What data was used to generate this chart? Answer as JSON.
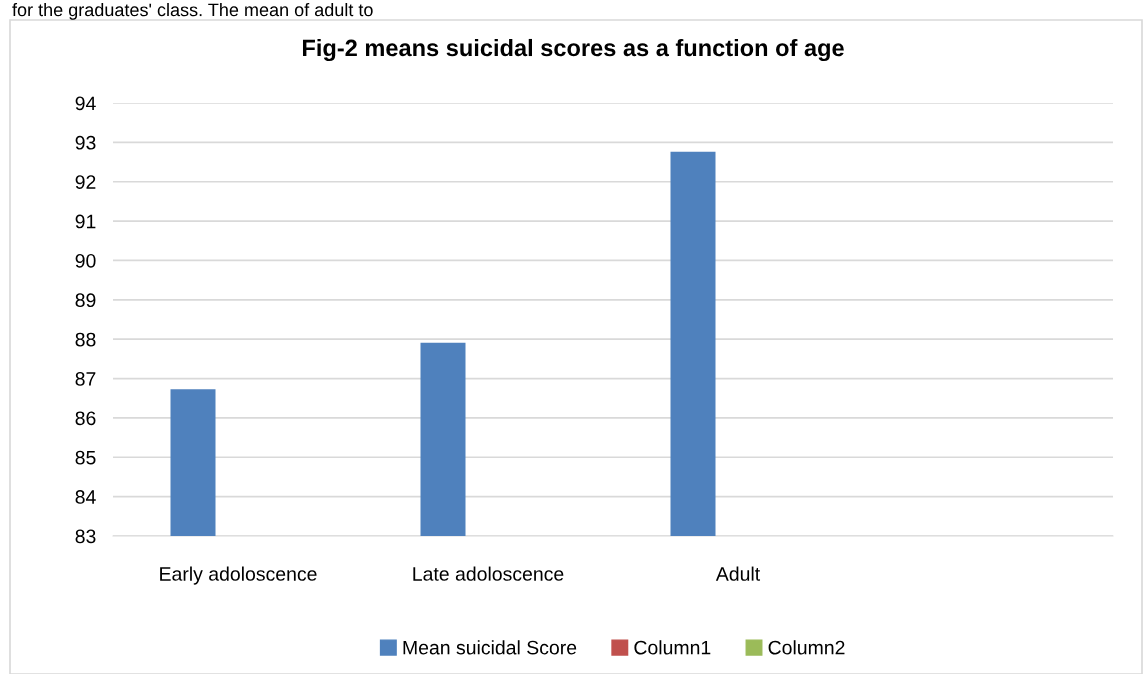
{
  "chart_data": {
    "type": "bar",
    "title": "Fig-2 means suicidal scores as a function of age",
    "annotations": [
      "for the graduates' class. The mean of adult to"
    ],
    "categories": [
      "Early adoloscence",
      "Late adoloscence",
      "Adult",
      null
    ],
    "series": [
      {
        "name": "Mean suicidal Score",
        "color": "#4f81bd",
        "values": [
          86.73,
          87.91,
          92.76,
          null
        ]
      },
      {
        "name": "Column1",
        "color": "#c0504d",
        "values": [
          null,
          null,
          null,
          null
        ]
      },
      {
        "name": "Column2",
        "color": "#9bbb59",
        "values": [
          null,
          null,
          null,
          null
        ]
      }
    ],
    "ylim": [
      83,
      94
    ],
    "yticks": [
      83,
      84,
      85,
      86,
      87,
      88,
      89,
      90,
      91,
      92,
      93,
      94
    ],
    "grid": "y",
    "legend": "bottom"
  }
}
